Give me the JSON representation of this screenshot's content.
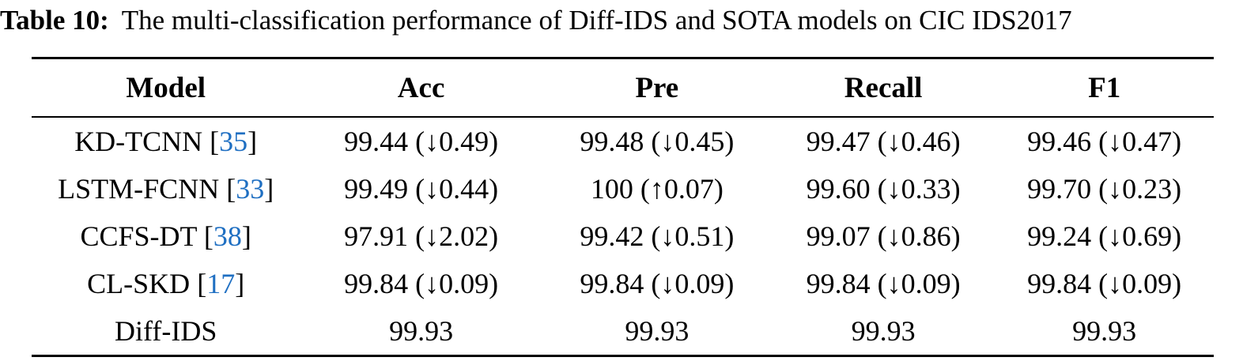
{
  "caption": {
    "label": "Table 10:",
    "text": "The multi-classification performance of Diff-IDS and SOTA models on CIC IDS2017"
  },
  "table": {
    "columns": [
      "Model",
      "Acc",
      "Pre",
      "Recall",
      "F1"
    ],
    "column_widths_pct": [
      22.7,
      20.5,
      19.4,
      18.9,
      18.5
    ],
    "rows": [
      {
        "model": "KD-TCNN",
        "cite": "35",
        "values": [
          "99.44 (↓0.49)",
          "99.48 (↓0.45)",
          "99.47 (↓0.46)",
          "99.46 (↓0.47)"
        ]
      },
      {
        "model": "LSTM-FCNN",
        "cite": "33",
        "values": [
          "99.49 (↓0.44)",
          "100 (↑0.07)",
          "99.60 (↓0.33)",
          "99.70 (↓0.23)"
        ]
      },
      {
        "model": "CCFS-DT",
        "cite": "38",
        "values": [
          "97.91 (↓2.02)",
          "99.42 (↓0.51)",
          "99.07 (↓0.86)",
          "99.24 (↓0.69)"
        ]
      },
      {
        "model": "CL-SKD",
        "cite": "17",
        "values": [
          "99.84 (↓0.09)",
          "99.84 (↓0.09)",
          "99.84 (↓0.09)",
          "99.84 (↓0.09)"
        ]
      },
      {
        "model": "Diff-IDS",
        "cite": null,
        "values": [
          "99.93",
          "99.93",
          "99.93",
          "99.93"
        ]
      }
    ],
    "colors": {
      "text": "#000000",
      "citation_blue": "#1f6fc2",
      "rule": "#000000"
    }
  },
  "chart_data": {
    "type": "table",
    "title": "Table 10: The multi-classification performance of Diff-IDS and SOTA models on CIC IDS2017",
    "columns": [
      "Model",
      "Acc",
      "Pre",
      "Recall",
      "F1"
    ],
    "rows": [
      [
        "KD-TCNN [35]",
        "99.44 (↓0.49)",
        "99.48 (↓0.45)",
        "99.47 (↓0.46)",
        "99.46 (↓0.47)"
      ],
      [
        "LSTM-FCNN [33]",
        "99.49 (↓0.44)",
        "100 (↑0.07)",
        "99.60 (↓0.33)",
        "99.70 (↓0.23)"
      ],
      [
        "CCFS-DT [38]",
        "97.91 (↓2.02)",
        "99.42 (↓0.51)",
        "99.07 (↓0.86)",
        "99.24 (↓0.69)"
      ],
      [
        "CL-SKD [17]",
        "99.84 (↓0.09)",
        "99.84 (↓0.09)",
        "99.84 (↓0.09)",
        "99.84 (↓0.09)"
      ],
      [
        "Diff-IDS",
        "99.93",
        "99.93",
        "99.93",
        "99.93"
      ]
    ]
  }
}
